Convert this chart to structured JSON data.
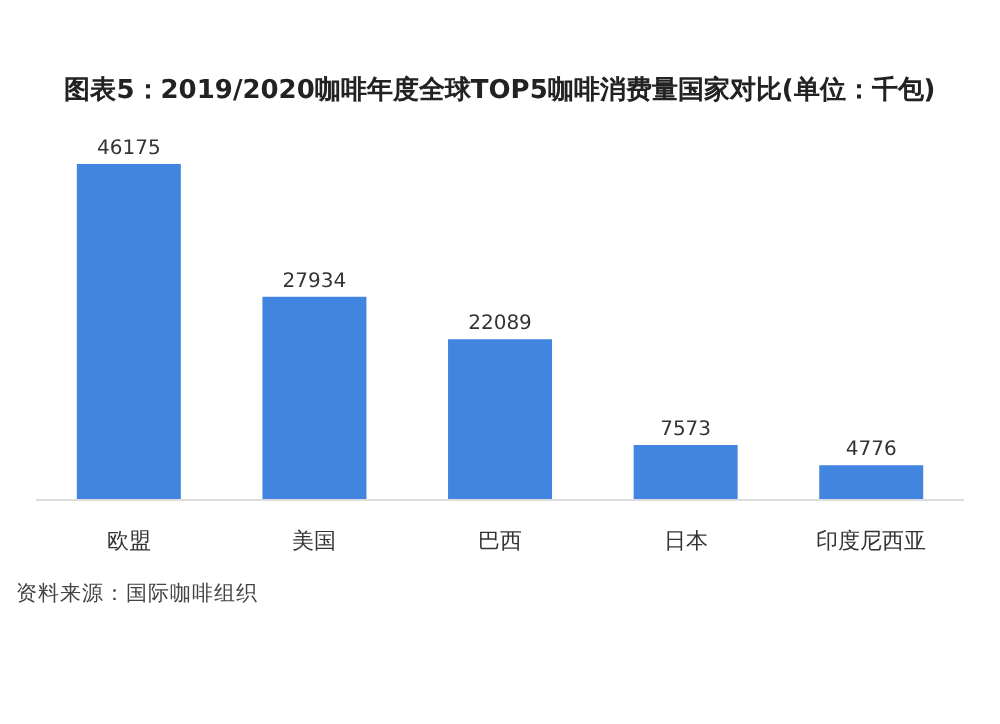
{
  "chart_data": {
    "type": "bar",
    "title": "图表5：2019/2020咖啡年度全球TOP5咖啡消费量国家对比(单位：千包)",
    "categories": [
      "欧盟",
      "美国",
      "巴西",
      "日本",
      "印度尼西亚"
    ],
    "values": [
      46175,
      27934,
      22089,
      7573,
      4776
    ],
    "color": "#4285e0",
    "data_labels": true,
    "annotations": [
      "资料来源：国际咖啡组织"
    ]
  }
}
